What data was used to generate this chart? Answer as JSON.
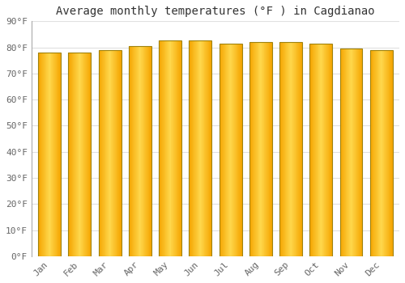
{
  "title": "Average monthly temperatures (°F ) in Cagdianao",
  "months": [
    "Jan",
    "Feb",
    "Mar",
    "Apr",
    "May",
    "Jun",
    "Jul",
    "Aug",
    "Sep",
    "Oct",
    "Nov",
    "Dec"
  ],
  "values": [
    78,
    78,
    79,
    80.5,
    82.5,
    82.5,
    81.5,
    82,
    82,
    81.5,
    79.5,
    79
  ],
  "ylim": [
    0,
    90
  ],
  "yticks": [
    0,
    10,
    20,
    30,
    40,
    50,
    60,
    70,
    80,
    90
  ],
  "bar_color_left": "#F5A500",
  "bar_color_center": "#FFD84D",
  "bar_border_color": "#B8860B",
  "background_color": "#FFFFFF",
  "grid_color": "#E0E0E0",
  "title_fontsize": 10,
  "tick_fontsize": 8,
  "title_font": "monospace",
  "tick_font": "monospace"
}
